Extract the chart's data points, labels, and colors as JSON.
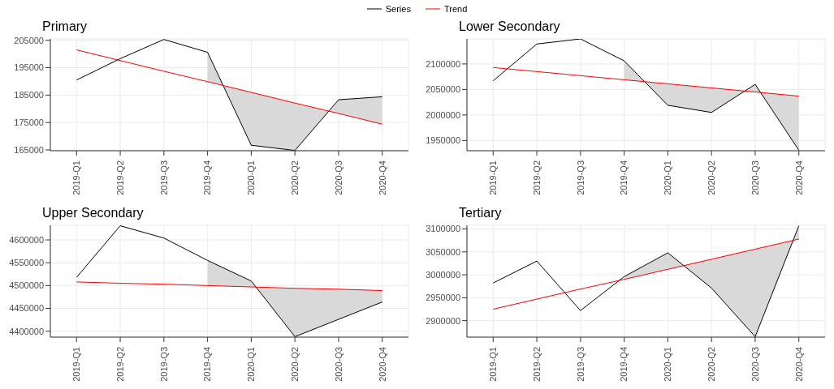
{
  "chart_data": [
    {
      "type": "line",
      "title": "Primary",
      "categories": [
        "2019-Q1",
        "2019-Q2",
        "2019-Q3",
        "2019-Q4",
        "2020-Q1",
        "2020-Q2",
        "2020-Q3",
        "2020-Q4"
      ],
      "ylim": [
        164700,
        205500
      ],
      "yticks": [
        165000,
        175000,
        185000,
        195000,
        205000
      ],
      "grid": true,
      "legend": "top",
      "series": [
        {
          "name": "Series",
          "color": "#000000",
          "values": [
            190500,
            198300,
            205300,
            200600,
            166700,
            164800,
            183300,
            184400
          ],
          "lower": [
            null,
            null,
            null,
            189900,
            186000,
            182100,
            178300,
            174400
          ],
          "upper": [
            null,
            null,
            null,
            200600,
            166700,
            164800,
            183300,
            184400
          ]
        },
        {
          "name": "Trend",
          "color": "#ff0000",
          "values": [
            201500,
            197600,
            193700,
            189900,
            186000,
            182100,
            178300,
            174400
          ]
        }
      ]
    },
    {
      "type": "line",
      "title": "Lower Secondary",
      "categories": [
        "2019-Q1",
        "2019-Q2",
        "2019-Q3",
        "2019-Q4",
        "2020-Q1",
        "2020-Q2",
        "2020-Q3",
        "2020-Q4"
      ],
      "ylim": [
        1930000,
        2149000
      ],
      "yticks": [
        1950000,
        2000000,
        2050000,
        2100000
      ],
      "grid": true,
      "series": [
        {
          "color": "#000000",
          "values": [
            2067000,
            2139000,
            2149000,
            2106000,
            2019000,
            2005000,
            2060000,
            1931000
          ],
          "lower": [
            null,
            null,
            null,
            2069000,
            2061000,
            2053000,
            2045000,
            2037000
          ],
          "upper": [
            null,
            null,
            null,
            2106000,
            2019000,
            2005000,
            2060000,
            1931000
          ]
        },
        {
          "color": "#ff0000",
          "values": [
            2093000,
            2085000,
            2077000,
            2069000,
            2061000,
            2053000,
            2045000,
            2037000
          ]
        }
      ]
    },
    {
      "type": "line",
      "title": "Upper Secondary",
      "categories": [
        "2019-Q1",
        "2019-Q2",
        "2019-Q3",
        "2019-Q4",
        "2020-Q1",
        "2020-Q2",
        "2020-Q3",
        "2020-Q4"
      ],
      "ylim": [
        4387000,
        4632000
      ],
      "yticks": [
        4400000,
        4450000,
        4500000,
        4550000,
        4600000
      ],
      "grid": true,
      "series": [
        {
          "color": "#000000",
          "values": [
            4518000,
            4631000,
            4604000,
            4555000,
            4510000,
            4388000,
            4426000,
            4464000
          ],
          "lower": [
            null,
            null,
            null,
            4500000,
            4497000,
            4494000,
            4492000,
            4489000
          ],
          "upper": [
            null,
            null,
            null,
            4555000,
            4510000,
            4388000,
            4426000,
            4464000
          ]
        },
        {
          "color": "#ff0000",
          "values": [
            4508000,
            4505000,
            4503000,
            4500000,
            4497000,
            4494000,
            4492000,
            4489000
          ]
        }
      ]
    },
    {
      "type": "line",
      "title": "Tertiary",
      "categories": [
        "2019-Q1",
        "2019-Q2",
        "2019-Q3",
        "2019-Q4",
        "2020-Q1",
        "2020-Q2",
        "2020-Q3",
        "2020-Q4"
      ],
      "ylim": [
        2864000,
        3108000
      ],
      "yticks": [
        2900000,
        2950000,
        3000000,
        3050000,
        3100000
      ],
      "grid": true,
      "series": [
        {
          "color": "#000000",
          "values": [
            2982000,
            3030000,
            2922000,
            2996000,
            3048000,
            2971000,
            2865000,
            3107000
          ],
          "lower": [
            null,
            null,
            null,
            2990000,
            3012000,
            3034000,
            3056000,
            3078000
          ],
          "upper": [
            null,
            null,
            null,
            2996000,
            3048000,
            2971000,
            2865000,
            3107000
          ]
        },
        {
          "color": "#ff0000",
          "values": [
            2925000,
            2947000,
            2969000,
            2990000,
            3012000,
            3034000,
            3056000,
            3078000
          ]
        }
      ]
    }
  ]
}
